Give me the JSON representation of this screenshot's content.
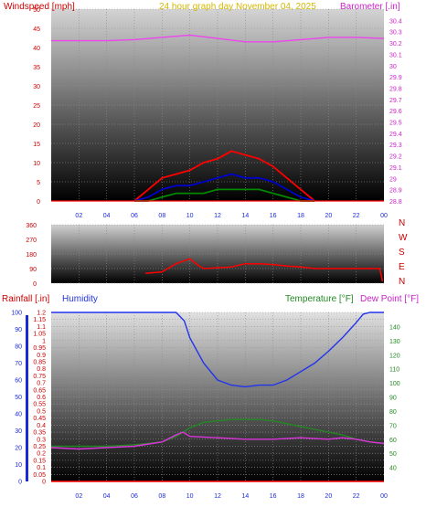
{
  "chart_data": [
    {
      "type": "line",
      "title": "24 hour graph day   November 04, 2025",
      "ylabel": "Windspeed [mph]",
      "y2label": "Barometer [.in]",
      "ylim": [
        0,
        50
      ],
      "y2lim": [
        28.8,
        30.5
      ],
      "xticks": [
        "02",
        "04",
        "06",
        "08",
        "10",
        "12",
        "14",
        "16",
        "18",
        "20",
        "22",
        "00"
      ],
      "yticks": [
        "0",
        "5",
        "10",
        "15",
        "20",
        "25",
        "30",
        "35",
        "40",
        "45",
        "50"
      ],
      "y2ticks": [
        "28.8",
        "28.9",
        "29",
        "29.1",
        "29.2",
        "29.3",
        "29.4",
        "29.5",
        "29.6",
        "29.7",
        "29.8",
        "29.9",
        "30",
        "30.1",
        "30.2",
        "30.3",
        "30.4"
      ],
      "series": [
        {
          "name": "Barometer",
          "color": "#ee44ee",
          "x": [
            0,
            2,
            4,
            6,
            8,
            10,
            12,
            14,
            16,
            18,
            20,
            22,
            24
          ],
          "values": [
            30.22,
            30.22,
            30.22,
            30.23,
            30.25,
            30.27,
            30.24,
            30.21,
            30.21,
            30.23,
            30.25,
            30.25,
            30.24
          ]
        },
        {
          "name": "Wind gust",
          "color": "#ff0000",
          "x": [
            6,
            7,
            8,
            9,
            10,
            11,
            12,
            13,
            14,
            15,
            16,
            17,
            18,
            19
          ],
          "values": [
            0,
            3,
            6,
            7,
            8,
            10,
            11,
            13,
            12,
            11,
            9,
            6,
            3,
            0
          ]
        },
        {
          "name": "Wind speed",
          "color": "#0000cc",
          "x": [
            6,
            7,
            8,
            9,
            10,
            11,
            12,
            13,
            14,
            15,
            16,
            17,
            18,
            19
          ],
          "values": [
            0,
            1,
            3,
            4,
            4,
            5,
            6,
            7,
            6,
            6,
            5,
            3,
            1,
            0
          ]
        },
        {
          "name": "Wind average",
          "color": "#008800",
          "x": [
            6,
            7,
            8,
            9,
            10,
            11,
            12,
            13,
            14,
            15,
            16,
            17,
            18,
            19
          ],
          "values": [
            0,
            0,
            1,
            2,
            2,
            2,
            3,
            3,
            3,
            3,
            2,
            1,
            0,
            0
          ]
        }
      ]
    },
    {
      "type": "line",
      "ylim": [
        0,
        360
      ],
      "yticks": [
        "0",
        "90",
        "180",
        "270",
        "360"
      ],
      "direction_labels": [
        "N",
        "W",
        "S",
        "E",
        "N"
      ],
      "series": [
        {
          "name": "Wind direction",
          "color": "#ff0000",
          "x": [
            6.8,
            8,
            9,
            10,
            10.6,
            11,
            12,
            13,
            14,
            15,
            16,
            17,
            18,
            19,
            20,
            22,
            23.7,
            23.9
          ],
          "values": [
            60,
            70,
            120,
            150,
            110,
            90,
            95,
            100,
            120,
            120,
            115,
            105,
            100,
            90,
            90,
            90,
            90,
            10
          ]
        }
      ]
    },
    {
      "type": "line",
      "ylabel": "Rainfall [.in]",
      "ylabel2": "Humidity",
      "y2label": "Temperature [°F]",
      "y2label2": "Dew Point [°F]",
      "ylim": [
        0,
        1.2
      ],
      "humidity_lim": [
        0,
        100
      ],
      "y2lim": [
        30,
        150
      ],
      "yticks": [
        "0",
        "0.05",
        "0.1",
        "0.15",
        "0.2",
        "0.25",
        "0.3",
        "0.35",
        "0.4",
        "0.45",
        "0.5",
        "0.55",
        "0.6",
        "0.65",
        "0.7",
        "0.75",
        "0.8",
        "0.85",
        "0.9",
        "0.95",
        "1",
        "1.05",
        "1.1",
        "1.15",
        "1.2"
      ],
      "humidity_ticks": [
        "0",
        "10",
        "20",
        "30",
        "40",
        "50",
        "60",
        "70",
        "80",
        "90",
        "100"
      ],
      "y2ticks": [
        "40",
        "50",
        "60",
        "70",
        "80",
        "90",
        "100",
        "110",
        "120",
        "130",
        "140"
      ],
      "series": [
        {
          "name": "Humidity",
          "color": "#2233ee",
          "x": [
            0,
            4,
            8,
            9,
            9.6,
            10,
            11,
            12,
            13,
            14,
            15,
            16,
            17,
            18,
            19,
            20,
            21,
            22,
            22.5,
            23,
            24
          ],
          "values": [
            100,
            100,
            100,
            100,
            95,
            85,
            70,
            60,
            57,
            56,
            57,
            57,
            60,
            65,
            70,
            77,
            85,
            94,
            99,
            100,
            100
          ]
        },
        {
          "name": "Temperature",
          "color": "#228822",
          "x": [
            0,
            4,
            6,
            8,
            9,
            10,
            11,
            12,
            13,
            14,
            15,
            16,
            17,
            18,
            19,
            20,
            21,
            22,
            23,
            24
          ],
          "values": [
            55,
            55,
            56,
            58,
            62,
            68,
            72,
            73,
            74,
            74,
            74,
            73,
            71,
            69,
            67,
            65,
            63,
            60,
            58,
            57
          ]
        },
        {
          "name": "Dew Point",
          "color": "#dd33dd",
          "x": [
            0,
            2,
            4,
            6,
            8,
            9,
            9.5,
            10,
            12,
            14,
            16,
            18,
            20,
            21,
            22,
            23,
            24
          ],
          "values": [
            54,
            53,
            54,
            55,
            58,
            63,
            65,
            62,
            61,
            60,
            60,
            61,
            60,
            61,
            60,
            58,
            57
          ]
        },
        {
          "name": "Rainfall",
          "color": "#ff0000",
          "x": [
            0,
            24
          ],
          "values": [
            0,
            0
          ]
        }
      ]
    }
  ]
}
